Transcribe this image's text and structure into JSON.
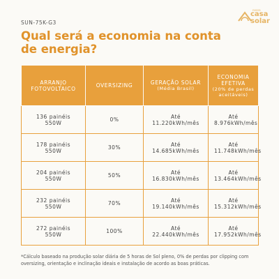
{
  "header": {
    "model": "SUN-75K-G3",
    "title": "Qual será a economia na conta de energia?",
    "logo": {
      "top": "nossa",
      "main": "casa",
      "bottom": "solar"
    }
  },
  "table": {
    "columns": [
      {
        "title": "ARRANJO FOTOVOLTAICO"
      },
      {
        "title": "OVERSIZING"
      },
      {
        "title": "GERAÇÃO SOLAR",
        "note": "(Média Brasil)"
      },
      {
        "title": "ECONOMIA EFETIVA",
        "note": "(20% de perdas aceitáveis)"
      }
    ],
    "rows": [
      [
        "136 painéis 550W",
        "0%",
        "Até 11.220kWh/mês",
        "Até 8.976kWh/mês"
      ],
      [
        "178 painéis 550W",
        "30%",
        "Até 14.685kWh/mês",
        "Até 11.748kWh/mês"
      ],
      [
        "204 painéis 550W",
        "50%",
        "Até 16.830kWh/mês",
        "Até 13.464kWh/mês"
      ],
      [
        "232 painéis 550W",
        "70%",
        "Até 19.140kWh/mês",
        "Até 15.312kWh/mês"
      ],
      [
        "272 painéis 550W",
        "100%",
        "Até 22.440kWh/mês",
        "Até 17.952kWh/mês"
      ]
    ]
  },
  "footnote": "*Cálculo baseado na produção solar diária de 5 horas de Sol pleno, 0% de perdas por clipping com oversizing, orientação e inclinação ideais e instalação de acordo as boas práticas."
}
